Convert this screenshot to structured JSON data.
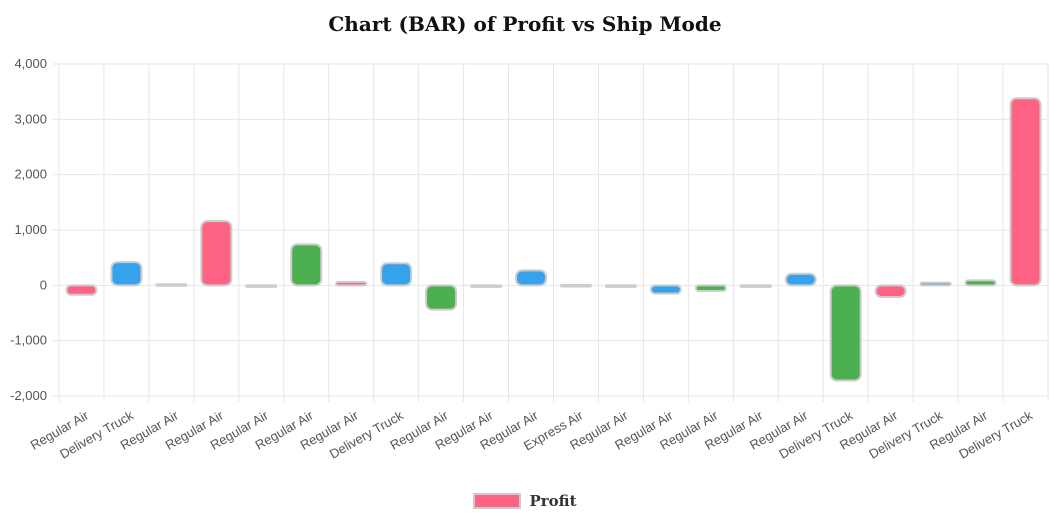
{
  "chart_data": {
    "type": "bar",
    "title": "Chart (BAR) of Profit vs Ship Mode",
    "xlabel": "",
    "ylabel": "",
    "ylim": [
      -2000,
      4000
    ],
    "yticks": [
      "4,000",
      "3,000",
      "2,000",
      "1,000",
      "0",
      "-1,000",
      "-2,000"
    ],
    "grid": true,
    "legend_position": "bottom",
    "categories": [
      "Regular Air",
      "Delivery Truck",
      "Regular Air",
      "Regular Air",
      "Regular Air",
      "Regular Air",
      "Regular Air",
      "Delivery Truck",
      "Regular Air",
      "Regular Air",
      "Regular Air",
      "Express Air",
      "Regular Air",
      "Regular Air",
      "Regular Air",
      "Regular Air",
      "Regular Air",
      "Delivery Truck",
      "Regular Air",
      "Delivery Truck",
      "Regular Air",
      "Delivery Truck"
    ],
    "series": [
      {
        "name": "Profit",
        "values": [
          -170,
          420,
          20,
          1160,
          0,
          740,
          60,
          400,
          -440,
          0,
          270,
          5,
          -10,
          -150,
          -100,
          0,
          210,
          -1720,
          -210,
          50,
          90,
          3380
        ]
      }
    ],
    "bar_colors": [
      "#ff6384",
      "#36a2eb",
      "#4caf50",
      "#ff6384",
      "#36a2eb",
      "#4caf50",
      "#ff6384",
      "#36a2eb",
      "#4caf50",
      "#ff6384",
      "#36a2eb",
      "#4caf50",
      "#ff6384",
      "#36a2eb",
      "#4caf50",
      "#ff6384",
      "#36a2eb",
      "#4caf50",
      "#ff6384",
      "#36a2eb",
      "#4caf50",
      "#ff6384"
    ],
    "legend_color": "#ff6384"
  }
}
